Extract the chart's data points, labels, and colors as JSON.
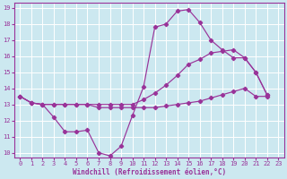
{
  "xlabel": "Windchill (Refroidissement éolien,°C)",
  "bg_color": "#cce8f0",
  "grid_color": "#ffffff",
  "line_color": "#993399",
  "xlim": [
    -0.5,
    23.5
  ],
  "ylim": [
    9.7,
    19.3
  ],
  "xticks": [
    0,
    1,
    2,
    3,
    4,
    5,
    6,
    7,
    8,
    9,
    10,
    11,
    12,
    13,
    14,
    15,
    16,
    17,
    18,
    19,
    20,
    21,
    22,
    23
  ],
  "yticks": [
    10,
    11,
    12,
    13,
    14,
    15,
    16,
    17,
    18,
    19
  ],
  "curve1_x": [
    0,
    1,
    2,
    3,
    4,
    5,
    6,
    7,
    8,
    9,
    10,
    11,
    12,
    13,
    14,
    15,
    16,
    17,
    18,
    19,
    20,
    21,
    22
  ],
  "curve1_y": [
    13.5,
    13.1,
    13.0,
    12.2,
    11.3,
    11.3,
    11.4,
    10.0,
    9.8,
    10.4,
    12.3,
    14.1,
    17.8,
    18.0,
    18.8,
    18.9,
    18.1,
    17.0,
    16.4,
    15.9,
    15.9,
    15.0,
    13.6
  ],
  "curve2_x": [
    0,
    1,
    2,
    3,
    4,
    5,
    6,
    7,
    8,
    9,
    10,
    11,
    12,
    13,
    14,
    15,
    16,
    17,
    18,
    19,
    20,
    21,
    22
  ],
  "curve2_y": [
    13.5,
    13.1,
    13.0,
    13.0,
    13.0,
    13.0,
    13.0,
    12.8,
    12.8,
    12.8,
    12.8,
    12.8,
    12.8,
    12.9,
    13.0,
    13.1,
    13.2,
    13.4,
    13.6,
    13.8,
    14.0,
    13.5,
    13.5
  ],
  "curve3_x": [
    0,
    1,
    2,
    3,
    4,
    5,
    6,
    7,
    8,
    9,
    10,
    11,
    12,
    13,
    14,
    15,
    16,
    17,
    18,
    19,
    20,
    21,
    22
  ],
  "curve3_y": [
    13.5,
    13.1,
    13.0,
    13.0,
    13.0,
    13.0,
    13.0,
    13.0,
    13.0,
    13.0,
    13.0,
    13.3,
    13.7,
    14.2,
    14.8,
    15.5,
    15.8,
    16.2,
    16.3,
    16.4,
    15.9,
    15.0,
    13.6
  ]
}
